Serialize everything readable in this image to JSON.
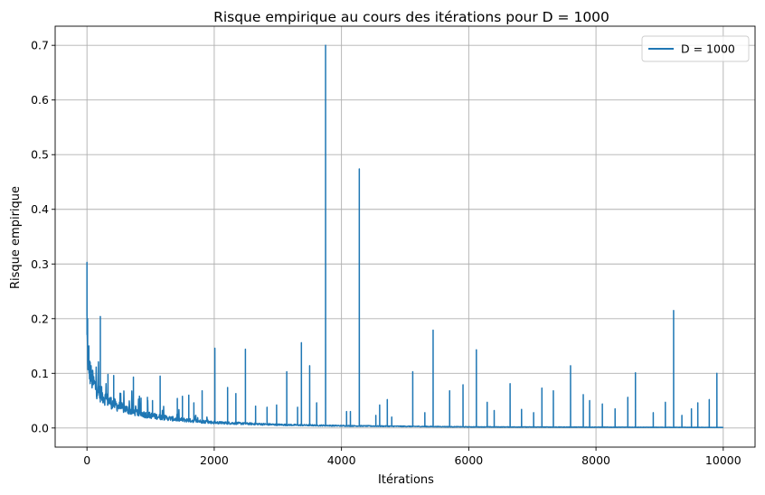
{
  "chart_data": {
    "type": "line",
    "title": "Risque empirique au cours des itérations pour D = 1000",
    "xlabel": "Itérations",
    "ylabel": "Risque empirique",
    "xlim": [
      -500,
      10500
    ],
    "ylim": [
      -0.035,
      0.735
    ],
    "xticks": [
      0,
      2000,
      4000,
      6000,
      8000,
      10000
    ],
    "xtick_labels": [
      "0",
      "2000",
      "4000",
      "6000",
      "8000",
      "10000"
    ],
    "yticks": [
      0.0,
      0.1,
      0.2,
      0.3,
      0.4,
      0.5,
      0.6,
      0.7
    ],
    "ytick_labels": [
      "0.0",
      "0.1",
      "0.2",
      "0.3",
      "0.4",
      "0.5",
      "0.6",
      "0.7"
    ],
    "grid": true,
    "legend_position": "top-right",
    "series": [
      {
        "name": "D = 1000",
        "color": "#1f77b4",
        "baseline": {
          "x": [
            0,
            5,
            10,
            20,
            40,
            70,
            100,
            150,
            200,
            300,
            400,
            500,
            700,
            900,
            1100,
            1400,
            1700,
            2000,
            2500,
            3000,
            3500,
            4000,
            5000,
            6000,
            8000,
            10000
          ],
          "y": [
            0.19,
            0.16,
            0.135,
            0.12,
            0.105,
            0.092,
            0.082,
            0.072,
            0.064,
            0.053,
            0.045,
            0.039,
            0.031,
            0.025,
            0.021,
            0.016,
            0.013,
            0.01,
            0.008,
            0.006,
            0.005,
            0.004,
            0.003,
            0.002,
            0.0015,
            0.001
          ]
        },
        "spikes": {
          "x": [
            0,
            10,
            30,
            50,
            210,
            330,
            420,
            730,
            850,
            950,
            1030,
            1150,
            1420,
            1500,
            1600,
            1680,
            1810,
            2010,
            2210,
            2340,
            2490,
            2650,
            2830,
            2980,
            3140,
            3310,
            3370,
            3500,
            3610,
            3750,
            4080,
            4140,
            4280,
            4540,
            4600,
            4720,
            4790,
            5120,
            5310,
            5440,
            5700,
            5910,
            6120,
            6290,
            6400,
            6650,
            6830,
            7020,
            7150,
            7330,
            7600,
            7800,
            7900,
            8100,
            8300,
            8500,
            8620,
            8900,
            9090,
            9220,
            9350,
            9500,
            9600,
            9780,
            9900
          ],
          "y": [
            0.303,
            0.2,
            0.15,
            0.12,
            0.204,
            0.098,
            0.096,
            0.093,
            0.052,
            0.056,
            0.05,
            0.095,
            0.054,
            0.058,
            0.06,
            0.046,
            0.068,
            0.146,
            0.074,
            0.063,
            0.144,
            0.04,
            0.038,
            0.042,
            0.103,
            0.038,
            0.156,
            0.114,
            0.046,
            0.7,
            0.03,
            0.03,
            0.474,
            0.023,
            0.042,
            0.052,
            0.02,
            0.103,
            0.028,
            0.179,
            0.068,
            0.079,
            0.143,
            0.047,
            0.032,
            0.081,
            0.034,
            0.028,
            0.073,
            0.068,
            0.114,
            0.061,
            0.05,
            0.044,
            0.035,
            0.056,
            0.101,
            0.028,
            0.047,
            0.215,
            0.023,
            0.035,
            0.046,
            0.052,
            0.1
          ]
        }
      }
    ]
  }
}
